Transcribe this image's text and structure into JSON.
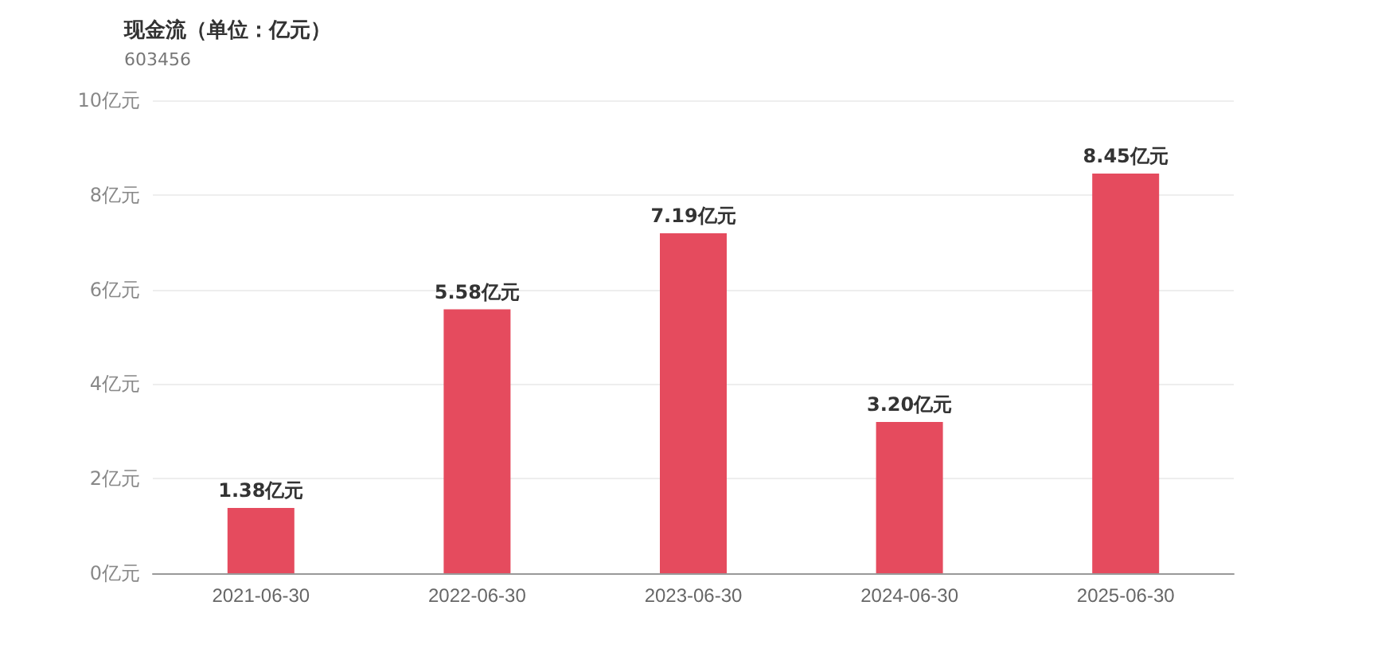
{
  "chart_data": {
    "type": "bar",
    "title": "现金流（单位：亿元）",
    "subtitle": "603456",
    "categories": [
      "2021-06-30",
      "2022-06-30",
      "2023-06-30",
      "2024-06-30",
      "2025-06-30"
    ],
    "values": [
      1.38,
      5.58,
      7.19,
      3.2,
      8.45
    ],
    "value_labels": [
      "1.38亿元",
      "5.58亿元",
      "7.19亿元",
      "3.20亿元",
      "8.45亿元"
    ],
    "color": "#e54b5e",
    "ylim": [
      0,
      10
    ],
    "yticks": [
      {
        "value": 0,
        "label": "0亿元"
      },
      {
        "value": 2,
        "label": "2亿元"
      },
      {
        "value": 4,
        "label": "4亿元"
      },
      {
        "value": 6,
        "label": "6亿元"
      },
      {
        "value": 8,
        "label": "8亿元"
      },
      {
        "value": 10,
        "label": "10亿元"
      }
    ],
    "grid": "y"
  }
}
